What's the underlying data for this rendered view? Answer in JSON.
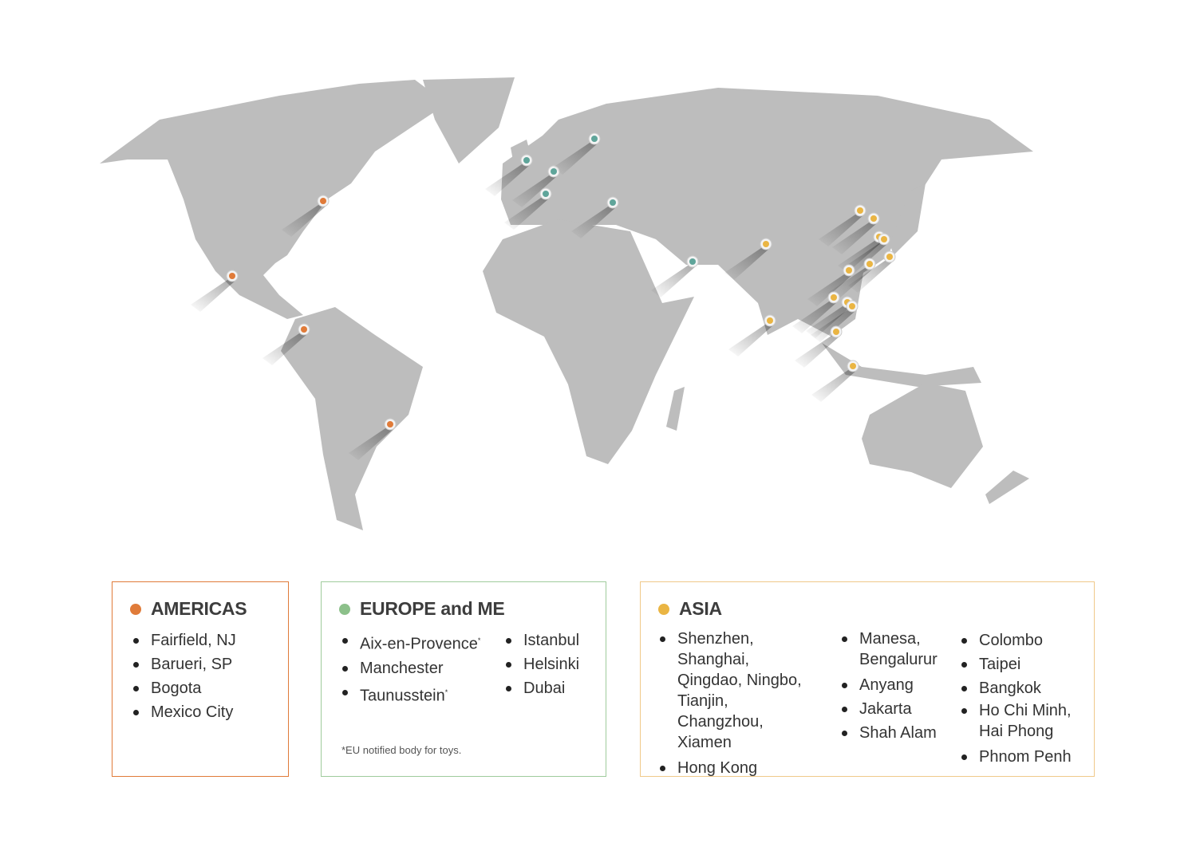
{
  "colors": {
    "americas": "#e07b39",
    "europe": "#8cc08a",
    "europe_marker": "#5fa59a",
    "asia": "#eab543",
    "land": "#bdbdbd"
  },
  "regions": {
    "americas": {
      "title": "AMERICAS",
      "items": [
        "Fairfield, NJ",
        "Barueri, SP",
        "Bogota",
        "Mexico City"
      ]
    },
    "europe": {
      "title": "EUROPE and ME",
      "col1": [
        "Aix-en-Provence",
        "Manchester",
        "Taunusstein"
      ],
      "col2": [
        "Istanbul",
        "Helsinki",
        "Dubai"
      ],
      "asterisk": "*",
      "note": "*EU notified body for toys."
    },
    "asia": {
      "title": "ASIA",
      "col1": [
        "Shenzhen, Shanghai, Qingdao, Ningbo, Tianjin, Changzhou, Xiamen",
        "Hong Kong"
      ],
      "col2": [
        "Manesa, Bengalurur",
        "Anyang",
        "Jakarta",
        "Shah Alam"
      ],
      "col3": [
        "Colombo",
        "Taipei",
        "Bangkok",
        "Ho Chi Minh, Hai Phong",
        "Phnom Penh"
      ]
    }
  }
}
